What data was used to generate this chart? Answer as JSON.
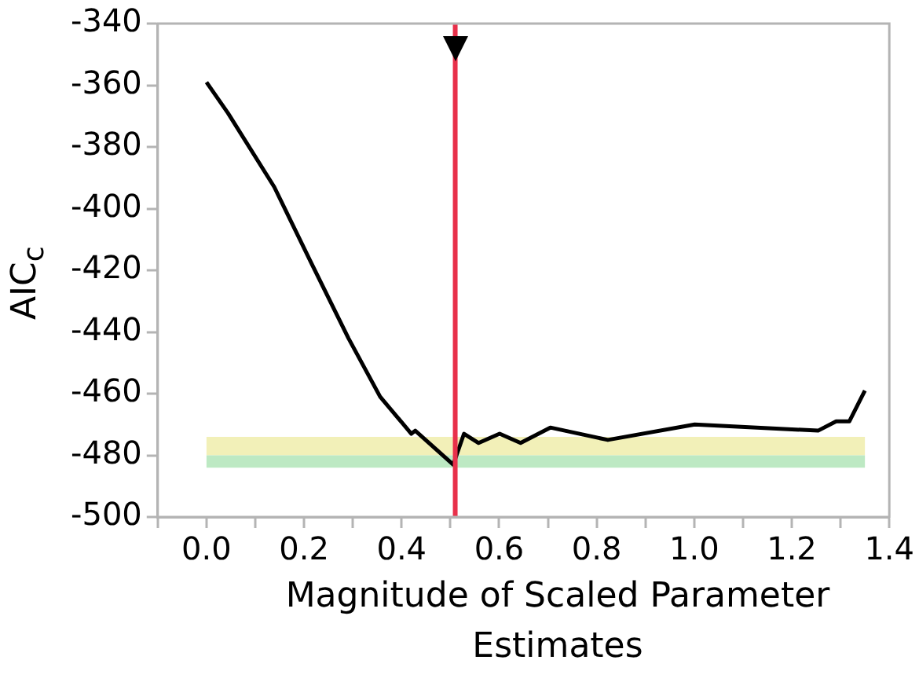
{
  "chart_data": {
    "type": "line",
    "xlabel": "Magnitude of Scaled Parameter Estimates",
    "ylabel": "AIC$_{c}$",
    "xlim": [
      -0.1,
      1.4
    ],
    "ylim": [
      -500,
      -340
    ],
    "xticks": [
      {
        "value": -0.1,
        "label": null
      },
      {
        "value": 0,
        "label": "0.0"
      },
      {
        "value": 0.1,
        "label": null
      },
      0.2,
      {
        "value": 0.3,
        "label": null
      },
      0.4,
      {
        "value": 0.5,
        "label": null
      },
      0.6,
      {
        "value": 0.7,
        "label": null
      },
      0.8,
      {
        "value": 0.9,
        "label": null
      },
      {
        "value": 1,
        "label": "1.0"
      },
      {
        "value": 1.1,
        "label": null
      },
      1.2,
      {
        "value": 1.3,
        "label": null
      },
      1.4
    ],
    "yticks": [
      -500,
      -480,
      -460,
      -440,
      -420,
      -400,
      -380,
      -360,
      -340
    ],
    "grid": false,
    "legend": false,
    "marker": "none",
    "line_style": "solid",
    "series": [
      {
        "color": "#000000",
        "x": [
          0.0,
          0.044,
          0.139,
          0.216,
          0.291,
          0.356,
          0.42,
          0.428,
          0.506,
          0.528,
          0.558,
          0.601,
          0.644,
          0.705,
          0.823,
          1.001,
          1.254,
          1.291,
          1.318,
          1.35
        ],
        "values": [
          -359,
          -369,
          -393,
          -418,
          -442,
          -461,
          -473,
          -472,
          -483,
          -473,
          -476,
          -473,
          -476,
          -471,
          -475,
          -470,
          -472,
          -469,
          -469,
          -459
        ]
      }
    ],
    "ref_lines": [
      {
        "axis": "x",
        "value": 0.51,
        "color": "#e8304a",
        "line_style": "solid"
      }
    ],
    "bands": [
      {
        "axis": "y",
        "from": -480,
        "to": -474,
        "color": "#f2f0b8"
      },
      {
        "axis": "y",
        "from": -484,
        "to": -480,
        "color": "#bde9c3"
      }
    ]
  }
}
